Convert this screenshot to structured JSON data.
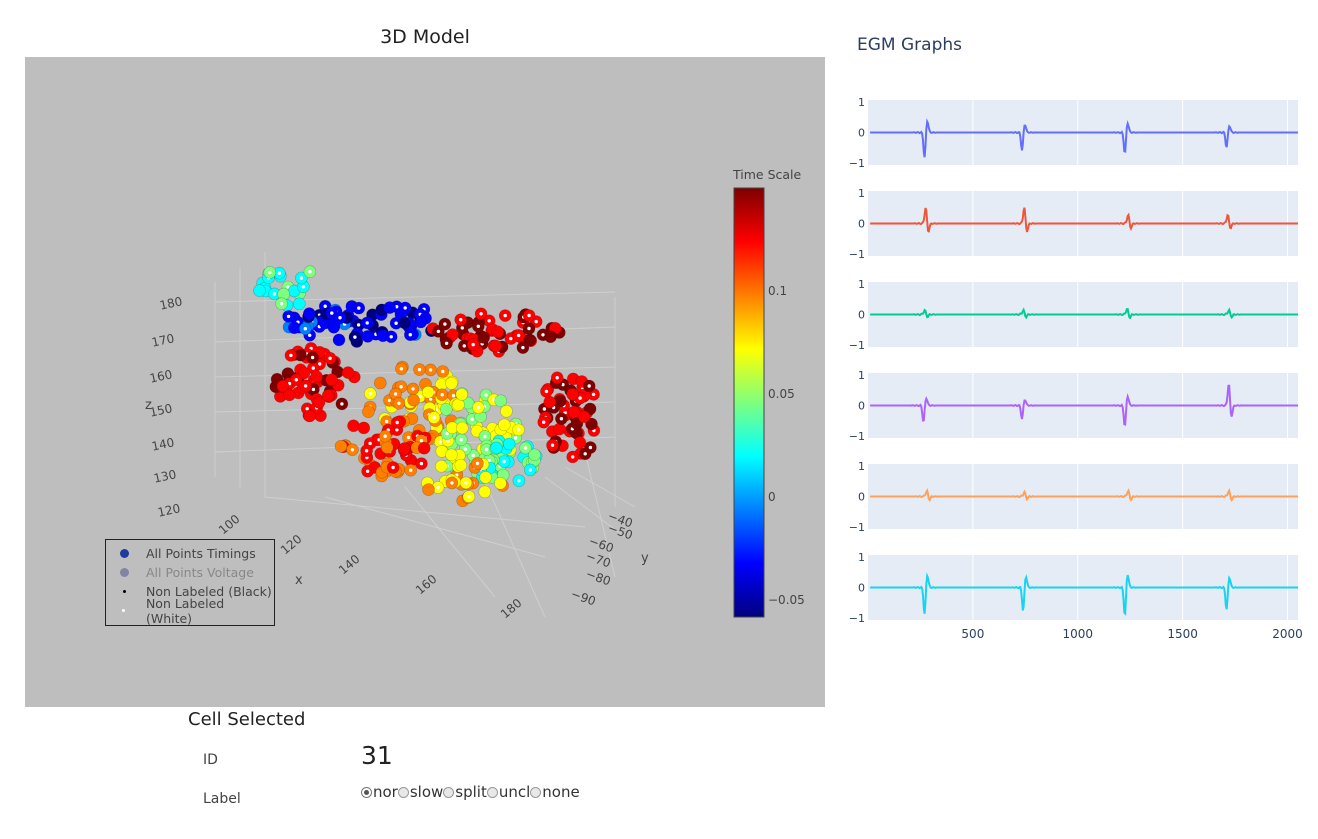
{
  "model3d": {
    "title": "3D Model",
    "axes": {
      "z": {
        "label": "z",
        "ticks": [
          "180",
          "170",
          "160",
          "150",
          "140",
          "130",
          "120"
        ]
      },
      "x": {
        "label": "x",
        "ticks": [
          "100",
          "120",
          "140",
          "160",
          "180"
        ]
      },
      "y": {
        "label": "y",
        "ticks": [
          "−40",
          "−50",
          "−60",
          "−70",
          "−80",
          "−90"
        ]
      }
    },
    "colorbar": {
      "title": "Time Scale",
      "ticks": [
        "0.1",
        "0.05",
        "0",
        "−0.05"
      ],
      "colorscale": [
        "#7f0000",
        "#ff0000",
        "#ff7f00",
        "#ffff00",
        "#7fff7f",
        "#00ffff",
        "#007fff",
        "#0000ff",
        "#00007f"
      ]
    },
    "legend": [
      {
        "label": "All Points Timings",
        "color": "#1f3aa0",
        "kind": "big",
        "dim": false
      },
      {
        "label": "All Points Voltage",
        "color": "#6a6a9a",
        "kind": "big",
        "dim": true
      },
      {
        "label": "Non Labeled (Black)",
        "color": "#000000",
        "kind": "small",
        "dim": false
      },
      {
        "label": "Non Labeled (White)",
        "color": "#ffffff",
        "kind": "small",
        "dim": false
      }
    ]
  },
  "egm": {
    "title": "EGM Graphs",
    "y_ticks": [
      "1",
      "0",
      "−1"
    ],
    "x_ticks": [
      "500",
      "1000",
      "1500",
      "2000"
    ],
    "x_range": [
      0,
      2050
    ],
    "traces": [
      {
        "color": "#636efa",
        "spikes": [
          {
            "x": 270,
            "amp": -0.85
          },
          {
            "x": 735,
            "amp": -0.6
          },
          {
            "x": 1225,
            "amp": -0.7
          },
          {
            "x": 1710,
            "amp": -0.5
          }
        ]
      },
      {
        "color": "#ef553b",
        "spikes": [
          {
            "x": 275,
            "amp": 0.55
          },
          {
            "x": 745,
            "amp": 0.55
          },
          {
            "x": 1240,
            "amp": 0.3
          },
          {
            "x": 1715,
            "amp": 0.3
          }
        ]
      },
      {
        "color": "#00cc96",
        "spikes": [
          {
            "x": 270,
            "amp": 0.15
          },
          {
            "x": 740,
            "amp": 0.15
          },
          {
            "x": 1235,
            "amp": 0.2
          },
          {
            "x": 1720,
            "amp": 0.15
          }
        ]
      },
      {
        "color": "#ab63fa",
        "spikes": [
          {
            "x": 265,
            "amp": -0.55
          },
          {
            "x": 735,
            "amp": -0.45
          },
          {
            "x": 1225,
            "amp": -0.7
          },
          {
            "x": 1720,
            "amp": 0.75
          }
        ]
      },
      {
        "color": "#ffa15a",
        "spikes": [
          {
            "x": 280,
            "amp": 0.2
          },
          {
            "x": 745,
            "amp": 0.15
          },
          {
            "x": 1240,
            "amp": 0.2
          },
          {
            "x": 1720,
            "amp": 0.2
          }
        ]
      },
      {
        "color": "#19d3f3",
        "spikes": [
          {
            "x": 270,
            "amp": -0.9
          },
          {
            "x": 740,
            "amp": -0.8
          },
          {
            "x": 1225,
            "amp": -0.95
          },
          {
            "x": 1710,
            "amp": -0.75
          }
        ]
      }
    ]
  },
  "cell": {
    "title": "Cell Selected",
    "id_label": "ID",
    "id_value": "31",
    "label_label": "Label",
    "options": [
      {
        "label": "nor",
        "checked": true
      },
      {
        "label": "slow",
        "checked": false
      },
      {
        "label": "split",
        "checked": false
      },
      {
        "label": "uncl",
        "checked": false
      },
      {
        "label": "none",
        "checked": false
      }
    ]
  }
}
